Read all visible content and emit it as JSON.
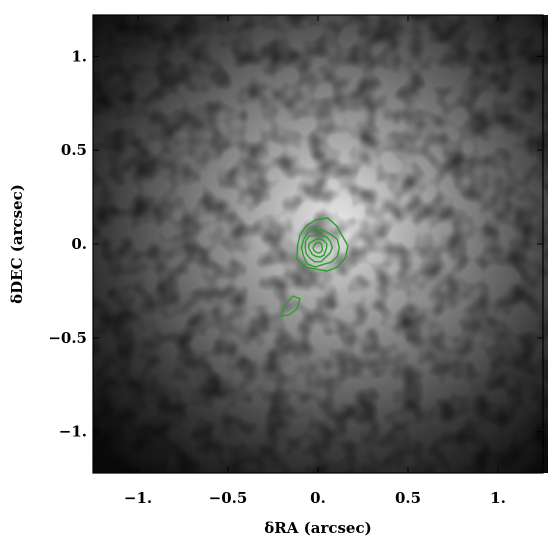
{
  "chart_data": {
    "type": "image",
    "xlabel": "δRA (arcsec)",
    "ylabel": "δDEC (arcsec)",
    "xlim": [
      -1.25,
      1.25
    ],
    "ylim": [
      -1.22,
      1.22
    ],
    "x_ticks": [
      {
        "value": -1.0,
        "label": "−1."
      },
      {
        "value": -0.5,
        "label": "−0.5"
      },
      {
        "value": 0.0,
        "label": "0."
      },
      {
        "value": 0.5,
        "label": "0.5"
      },
      {
        "value": 1.0,
        "label": "1."
      }
    ],
    "y_ticks": [
      {
        "value": 1.0,
        "label": "1."
      },
      {
        "value": 0.5,
        "label": "0.5"
      },
      {
        "value": 0.0,
        "label": "0."
      },
      {
        "value": -0.5,
        "label": "−0.5"
      },
      {
        "value": -1.0,
        "label": "−1."
      }
    ],
    "image": {
      "colormap": "grayscale",
      "peak_position": [
        0.1,
        0.12
      ]
    },
    "contours": {
      "color": "#2ca02c",
      "main_source": {
        "center": [
          0.0,
          -0.02
        ],
        "rings": [
          {
            "rx": 0.14,
            "ry": 0.14,
            "cx_offset": 0.02,
            "cy_offset": 0.01
          },
          {
            "rx": 0.105,
            "ry": 0.1,
            "cx_offset": 0.01,
            "cy_offset": 0.0
          },
          {
            "rx": 0.075,
            "ry": 0.072,
            "cx_offset": 0.0,
            "cy_offset": 0.0
          },
          {
            "rx": 0.05,
            "ry": 0.048,
            "cx_offset": 0.0,
            "cy_offset": 0.0
          },
          {
            "rx": 0.025,
            "ry": 0.028,
            "cx_offset": 0.0,
            "cy_offset": 0.0
          }
        ]
      },
      "secondary_source": {
        "center": [
          -0.15,
          -0.33
        ]
      }
    }
  }
}
